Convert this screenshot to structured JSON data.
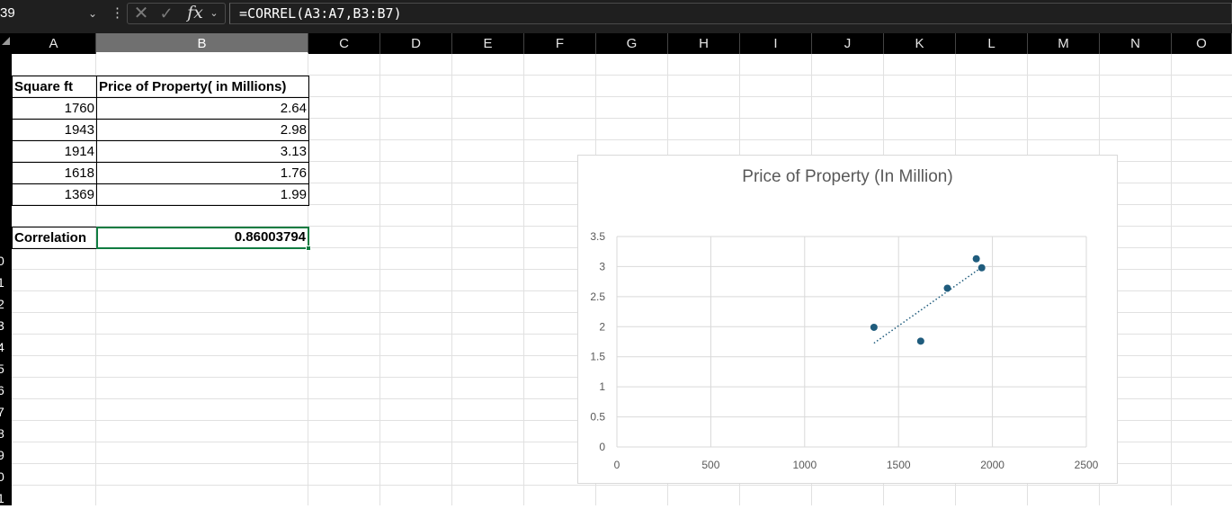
{
  "formula_bar": {
    "name_box": "39",
    "formula": "=CORREL(A3:A7,B3:B7)",
    "fx_label": "fx"
  },
  "columns": [
    "A",
    "B",
    "C",
    "D",
    "E",
    "F",
    "G",
    "H",
    "I",
    "J",
    "K",
    "L",
    "M",
    "N",
    "O"
  ],
  "selected_column": "B",
  "row_labels": [
    "0",
    "1",
    "2",
    "3",
    "4",
    "5",
    "6",
    "7",
    "8",
    "9",
    "0",
    "1"
  ],
  "table": {
    "headers": [
      "Square ft",
      "Price of Property( in Millions)"
    ],
    "rows": [
      [
        "1760",
        "2.64"
      ],
      [
        "1943",
        "2.98"
      ],
      [
        "1914",
        "3.13"
      ],
      [
        "1618",
        "1.76"
      ],
      [
        "1369",
        "1.99"
      ]
    ]
  },
  "result": {
    "label": "Correlation",
    "value": "0.86003794"
  },
  "chart_data": {
    "type": "scatter",
    "title": "Price of Property (In Million)",
    "x": [
      1760,
      1943,
      1914,
      1618,
      1369
    ],
    "y": [
      2.64,
      2.98,
      3.13,
      1.76,
      1.99
    ],
    "xlim": [
      0,
      2500
    ],
    "ylim": [
      0,
      3.5
    ],
    "xticks": [
      "0",
      "500",
      "1000",
      "1500",
      "2000",
      "2500"
    ],
    "yticks": [
      "0",
      "0.5",
      "1",
      "1.5",
      "2",
      "2.5",
      "3",
      "3.5"
    ],
    "trendline": "linear",
    "grid": true,
    "legend": "none",
    "marker_color": "#1f5c7d"
  }
}
